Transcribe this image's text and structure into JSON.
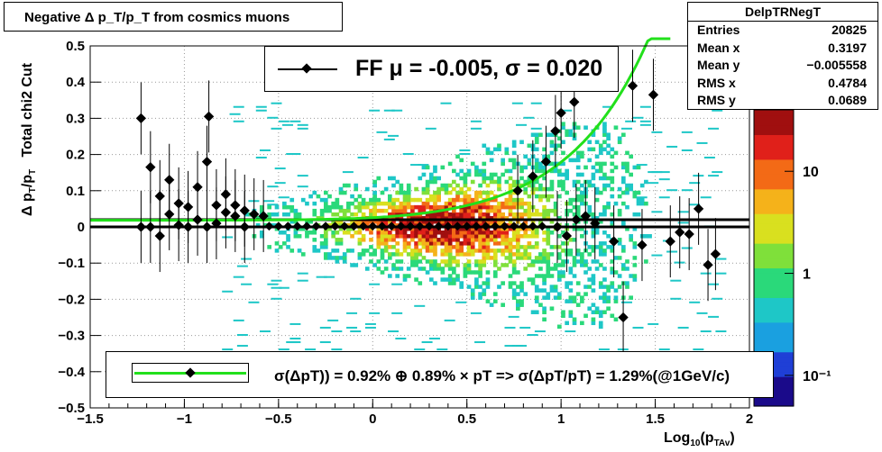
{
  "title": "Negative Δ p_T/p_T from cosmics muons",
  "stats": {
    "name": "DelpTRNegT",
    "rows": [
      {
        "label": "Entries",
        "value": "20825"
      },
      {
        "label": "Mean x",
        "value": "0.3197"
      },
      {
        "label": "Mean y",
        "value": "−0.005558"
      },
      {
        "label": "RMS x",
        "value": "0.4784"
      },
      {
        "label": "RMS y",
        "value": "0.0689"
      }
    ]
  },
  "fit_legend": "FF μ = -0.005, σ =   0.020",
  "formula_legend": "σ(ΔpT)) =  0.92% ⊕  0.89% × pT => σ(ΔpT/pT) =  1.29%(@1GeV/c)",
  "chart_data": {
    "type": "heatmap",
    "title": "Negative Δ p_T/p_T from cosmics muons",
    "xlabel": "Log10(p_TAv)",
    "ylabel": "Δ p_T/p_T   Total chi2 Cut",
    "xlim": [
      -1.5,
      2.0
    ],
    "ylim": [
      -0.5,
      0.5
    ],
    "x_ticks": [
      "−1.5",
      "−1",
      "−0.5",
      "0",
      "0.5",
      "1",
      "1.5",
      "2"
    ],
    "y_ticks": [
      "−0.5",
      "−0.4",
      "−0.3",
      "−0.2",
      "−0.1",
      "0",
      "0.1",
      "0.2",
      "0.3",
      "0.4",
      "0.5"
    ],
    "z_scale": "log",
    "zlim": [
      0.05,
      40
    ],
    "z_ticks": [
      "10⁻¹",
      "1",
      "10"
    ],
    "grid": true,
    "color_palette": [
      "#1a0a8a",
      "#1f3fd6",
      "#1aa0e0",
      "#1ec7c7",
      "#2ad97a",
      "#7fe03a",
      "#d9e01f",
      "#f5b21a",
      "#f36a16",
      "#e0201a",
      "#a00f0f"
    ],
    "reference_lines": [
      {
        "y": 0.0,
        "color": "#000000"
      },
      {
        "y": 0.02,
        "color": "#000000"
      }
    ],
    "fit_curve": {
      "color": "#22e01b",
      "sigma_const_pct": 0.92,
      "sigma_slope_pct": 0.89,
      "x_range": [
        -1.5,
        1.6
      ]
    },
    "profile_markers": [
      {
        "x": -1.23,
        "y": 0.3
      },
      {
        "x": -1.18,
        "y": 0.165
      },
      {
        "x": -1.13,
        "y": 0.085
      },
      {
        "x": -1.08,
        "y": 0.13
      },
      {
        "x": -1.03,
        "y": 0.065
      },
      {
        "x": -0.98,
        "y": 0.055
      },
      {
        "x": -0.93,
        "y": 0.11
      },
      {
        "x": -0.88,
        "y": 0.18
      },
      {
        "x": -0.87,
        "y": 0.305
      },
      {
        "x": -0.83,
        "y": 0.06
      },
      {
        "x": -0.78,
        "y": 0.09
      },
      {
        "x": -0.73,
        "y": 0.06
      },
      {
        "x": -0.68,
        "y": 0.045
      },
      {
        "x": -0.63,
        "y": 0.035
      },
      {
        "x": -0.58,
        "y": 0.03
      },
      {
        "x": 0.77,
        "y": 0.1
      },
      {
        "x": 0.85,
        "y": 0.14
      },
      {
        "x": 0.92,
        "y": 0.18
      },
      {
        "x": 0.97,
        "y": 0.265
      },
      {
        "x": 1.0,
        "y": 0.315
      },
      {
        "x": 1.07,
        "y": 0.345
      },
      {
        "x": 1.38,
        "y": 0.39
      },
      {
        "x": 1.49,
        "y": 0.365
      }
    ],
    "mean_markers": [
      {
        "x": -1.23,
        "y": 0.0
      },
      {
        "x": -1.18,
        "y": 0.0
      },
      {
        "x": -1.13,
        "y": -0.025
      },
      {
        "x": -1.08,
        "y": 0.035
      },
      {
        "x": -1.03,
        "y": 0.005
      },
      {
        "x": -0.98,
        "y": 0.0
      },
      {
        "x": -0.93,
        "y": 0.02
      },
      {
        "x": -0.88,
        "y": 0.0
      },
      {
        "x": -0.83,
        "y": 0.01
      },
      {
        "x": -0.78,
        "y": 0.04
      },
      {
        "x": -0.73,
        "y": 0.03
      },
      {
        "x": -0.68,
        "y": 0.0
      },
      {
        "x": 0.98,
        "y": 0.0
      },
      {
        "x": 1.03,
        "y": -0.025
      },
      {
        "x": 1.08,
        "y": 0.02
      },
      {
        "x": 1.13,
        "y": 0.03
      },
      {
        "x": 1.18,
        "y": 0.01
      },
      {
        "x": 1.28,
        "y": -0.04
      },
      {
        "x": 1.33,
        "y": -0.25
      },
      {
        "x": 1.43,
        "y": -0.05
      },
      {
        "x": 1.58,
        "y": -0.04
      },
      {
        "x": 1.63,
        "y": -0.015
      },
      {
        "x": 1.68,
        "y": -0.02
      },
      {
        "x": 1.73,
        "y": 0.05
      },
      {
        "x": 1.78,
        "y": -0.105
      },
      {
        "x": 1.82,
        "y": -0.075
      }
    ]
  }
}
